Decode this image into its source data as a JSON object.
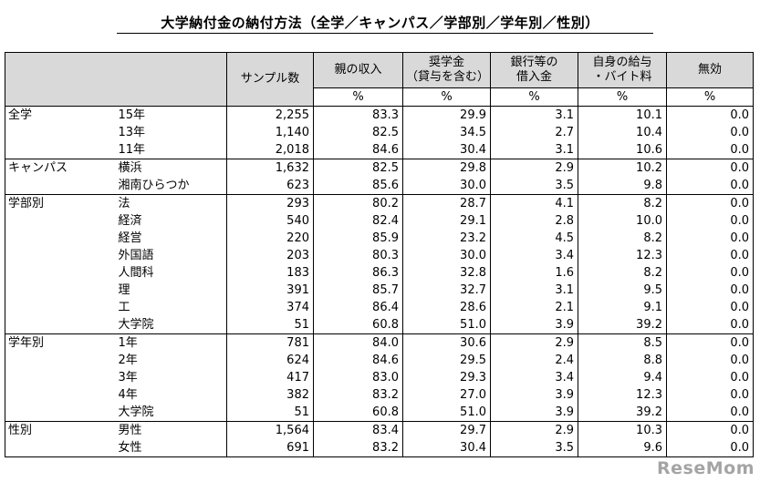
{
  "title": "大学納付金の納付方法（全学／キャンパス／学部別／学年別／性別）",
  "header": {
    "columns": [
      "サンプル数",
      "親の収入",
      "奨学金\n（貸与を含む）",
      "銀行等の\n借入金",
      "自身の給与\n・バイト料",
      "無効"
    ],
    "unit": "%"
  },
  "groups": [
    {
      "label": "全学",
      "rows": [
        {
          "sub": "15年",
          "values": [
            "2,255",
            "83.3",
            "29.9",
            "3.1",
            "10.1",
            "0.0"
          ]
        },
        {
          "sub": "13年",
          "values": [
            "1,140",
            "82.5",
            "34.5",
            "2.7",
            "10.4",
            "0.0"
          ]
        },
        {
          "sub": "11年",
          "values": [
            "2,018",
            "84.6",
            "30.4",
            "3.1",
            "10.6",
            "0.0"
          ]
        }
      ]
    },
    {
      "label": "キャンパス",
      "rows": [
        {
          "sub": "横浜",
          "values": [
            "1,632",
            "82.5",
            "29.8",
            "2.9",
            "10.2",
            "0.0"
          ]
        },
        {
          "sub": "湘南ひらつか",
          "values": [
            "623",
            "85.6",
            "30.0",
            "3.5",
            "9.8",
            "0.0"
          ]
        }
      ]
    },
    {
      "label": "学部別",
      "rows": [
        {
          "sub": "法",
          "values": [
            "293",
            "80.2",
            "28.7",
            "4.1",
            "8.2",
            "0.0"
          ]
        },
        {
          "sub": "経済",
          "values": [
            "540",
            "82.4",
            "29.1",
            "2.8",
            "10.0",
            "0.0"
          ]
        },
        {
          "sub": "経営",
          "values": [
            "220",
            "85.9",
            "23.2",
            "4.5",
            "8.2",
            "0.0"
          ]
        },
        {
          "sub": "外国語",
          "values": [
            "203",
            "80.3",
            "30.0",
            "3.4",
            "12.3",
            "0.0"
          ]
        },
        {
          "sub": "人間科",
          "values": [
            "183",
            "86.3",
            "32.8",
            "1.6",
            "8.2",
            "0.0"
          ]
        },
        {
          "sub": "理",
          "values": [
            "391",
            "85.7",
            "32.7",
            "3.1",
            "9.5",
            "0.0"
          ]
        },
        {
          "sub": "工",
          "values": [
            "374",
            "86.4",
            "28.6",
            "2.1",
            "9.1",
            "0.0"
          ]
        },
        {
          "sub": "大学院",
          "values": [
            "51",
            "60.8",
            "51.0",
            "3.9",
            "39.2",
            "0.0"
          ]
        }
      ]
    },
    {
      "label": "学年別",
      "rows": [
        {
          "sub": "1年",
          "values": [
            "781",
            "84.0",
            "30.6",
            "2.9",
            "8.5",
            "0.0"
          ]
        },
        {
          "sub": "2年",
          "values": [
            "624",
            "84.6",
            "29.5",
            "2.4",
            "8.8",
            "0.0"
          ]
        },
        {
          "sub": "3年",
          "values": [
            "417",
            "83.0",
            "29.3",
            "3.4",
            "9.4",
            "0.0"
          ]
        },
        {
          "sub": "4年",
          "values": [
            "382",
            "83.2",
            "27.0",
            "3.9",
            "12.3",
            "0.0"
          ]
        },
        {
          "sub": "大学院",
          "values": [
            "51",
            "60.8",
            "51.0",
            "3.9",
            "39.2",
            "0.0"
          ]
        }
      ]
    },
    {
      "label": "性別",
      "rows": [
        {
          "sub": "男性",
          "values": [
            "1,564",
            "83.4",
            "29.7",
            "2.9",
            "10.3",
            "0.0"
          ]
        },
        {
          "sub": "女性",
          "values": [
            "691",
            "83.2",
            "30.4",
            "3.5",
            "9.6",
            "0.0"
          ]
        }
      ]
    }
  ],
  "watermark": "ReseMom"
}
